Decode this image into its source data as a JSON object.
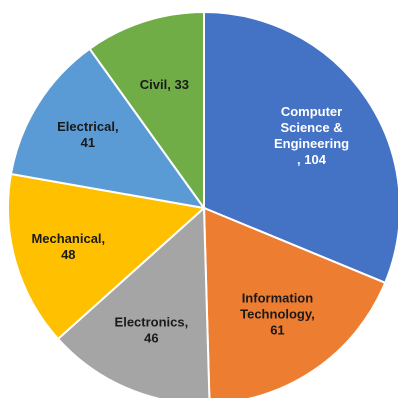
{
  "chart_data": {
    "type": "pie",
    "title": "",
    "slices": [
      {
        "label": [
          "Computer",
          "Science &",
          "Engineering",
          ", 104"
        ],
        "category": "Computer Science & Engineering",
        "value": 104,
        "color": "#4472c4",
        "text_color": "#ffffff"
      },
      {
        "label": [
          "Information",
          "Technology,",
          "61"
        ],
        "category": "Information Technology",
        "value": 61,
        "color": "#ed7d31",
        "text_color": "#1a1a1a"
      },
      {
        "label": [
          "Electronics,",
          "46"
        ],
        "category": "Electronics",
        "value": 46,
        "color": "#a5a5a5",
        "text_color": "#1a1a1a"
      },
      {
        "label": [
          "Mechanical,",
          "48"
        ],
        "category": "Mechanical",
        "value": 48,
        "color": "#ffc000",
        "text_color": "#1a1a1a"
      },
      {
        "label": [
          "Electrical,",
          "41"
        ],
        "category": "Electrical",
        "value": 41,
        "color": "#5b9bd5",
        "text_color": "#1a1a1a"
      },
      {
        "label": [
          "Civil, 33"
        ],
        "category": "Civil",
        "value": 33,
        "color": "#70ad47",
        "text_color": "#1a1a1a"
      }
    ],
    "start_angle_deg": 0,
    "direction": "clockwise",
    "legend": "none"
  }
}
